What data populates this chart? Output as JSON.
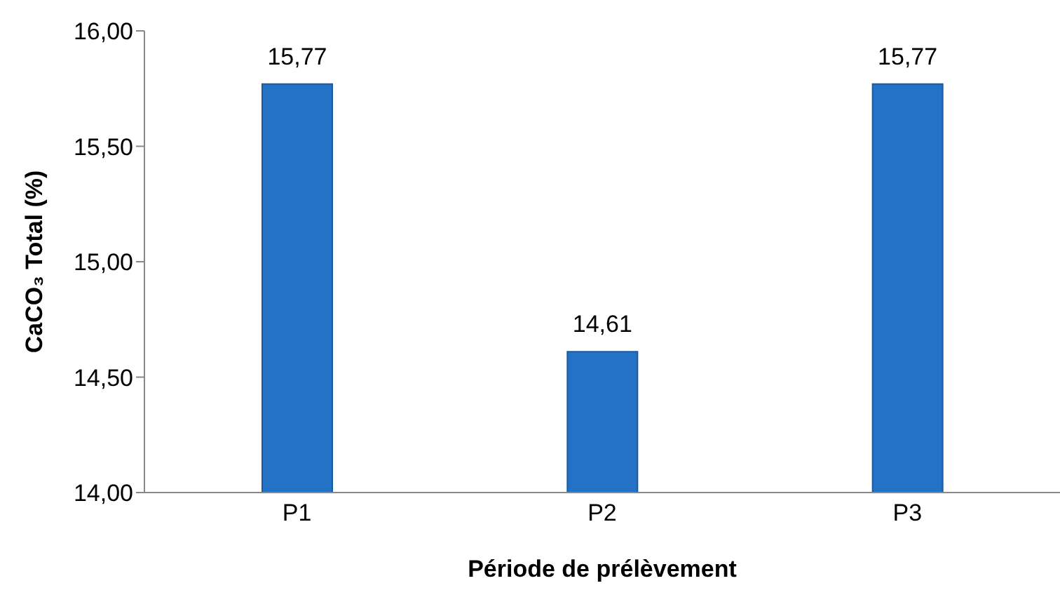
{
  "chart_data": {
    "type": "bar",
    "xlabel": "Période de prélèvement",
    "ylabel": "CaCO₃ Total (%)",
    "categories": [
      "P1",
      "P2",
      "P3"
    ],
    "values": [
      15.77,
      14.61,
      15.77
    ],
    "value_labels": [
      "15,77",
      "14,61",
      "15,77"
    ],
    "color": "#2372c6",
    "ylim": [
      14,
      16
    ],
    "yticks": [
      {
        "value": 14,
        "label": "14,00"
      },
      {
        "value": 14.5,
        "label": "14,50"
      },
      {
        "value": 15,
        "label": "15,00"
      },
      {
        "value": 15.5,
        "label": "15,50"
      },
      {
        "value": 16,
        "label": "16,00"
      }
    ],
    "grid": false,
    "legend": false
  }
}
